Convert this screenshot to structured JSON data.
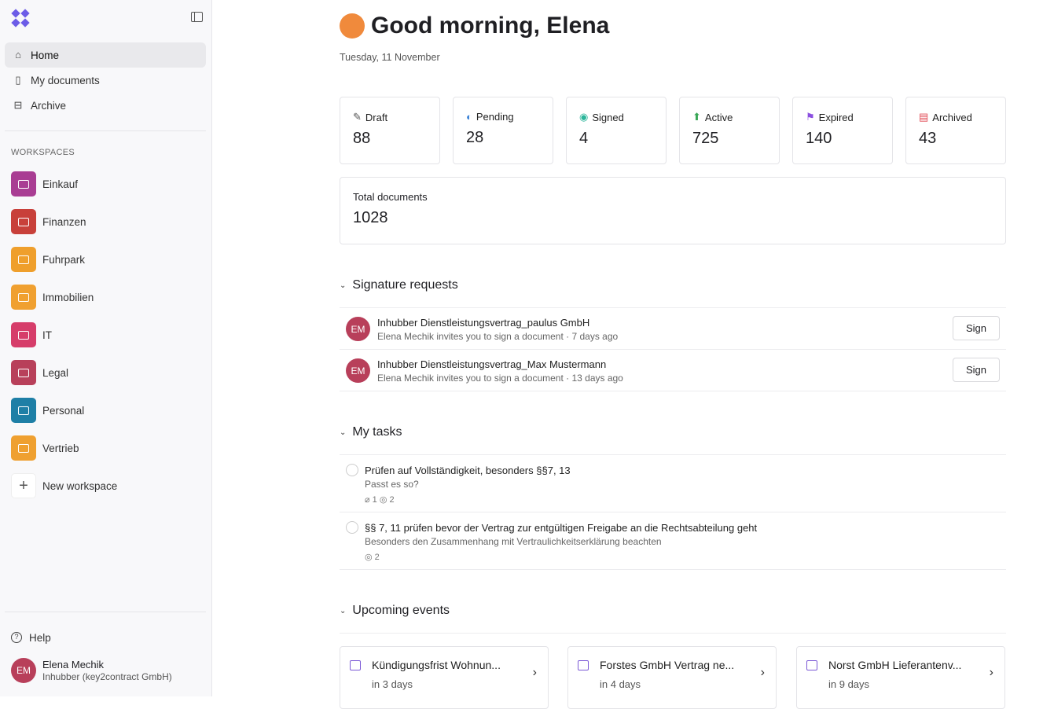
{
  "sidebar": {
    "nav": [
      {
        "label": "Home",
        "icon": "home-icon"
      },
      {
        "label": "My documents",
        "icon": "document-icon"
      },
      {
        "label": "Archive",
        "icon": "archive-icon"
      }
    ],
    "workspaces_heading": "WORKSPACES",
    "workspaces": [
      {
        "label": "Einkauf",
        "color": "#a93d93"
      },
      {
        "label": "Finanzen",
        "color": "#c8403a"
      },
      {
        "label": "Fuhrpark",
        "color": "#ef9f2c"
      },
      {
        "label": "Immobilien",
        "color": "#f0a030"
      },
      {
        "label": "IT",
        "color": "#d63d6a"
      },
      {
        "label": "Legal",
        "color": "#b8405a"
      },
      {
        "label": "Personal",
        "color": "#1e7fa6"
      },
      {
        "label": "Vertrieb",
        "color": "#efa030"
      }
    ],
    "new_workspace": "New workspace",
    "help": "Help",
    "user": {
      "initials": "EM",
      "name": "Elena Mechik",
      "org": "Inhubber (key2contract GmbH)"
    }
  },
  "header": {
    "greeting": "Good morning, Elena",
    "date": "Tuesday, 11 November"
  },
  "stats": [
    {
      "label": "Draft",
      "value": "88",
      "icon": "pencil-icon",
      "color": "#555"
    },
    {
      "label": "Pending",
      "value": "28",
      "icon": "half-circle-icon",
      "color": "#3b82d6"
    },
    {
      "label": "Signed",
      "value": "4",
      "icon": "check-circle-icon",
      "color": "#2bb59a"
    },
    {
      "label": "Active",
      "value": "725",
      "icon": "arrow-up-circle-icon",
      "color": "#3aa757"
    },
    {
      "label": "Expired",
      "value": "140",
      "icon": "flag-icon",
      "color": "#8b4fe0"
    },
    {
      "label": "Archived",
      "value": "43",
      "icon": "archive-icon",
      "color": "#e0454f"
    }
  ],
  "total": {
    "label": "Total documents",
    "value": "1028"
  },
  "signature_requests": {
    "title": "Signature requests",
    "items": [
      {
        "initials": "EM",
        "title": "Inhubber Dienstleistungsvertrag_paulus GmbH",
        "subtitle": "Elena Mechik invites you to sign a document · 7 days ago",
        "button": "Sign"
      },
      {
        "initials": "EM",
        "title": "Inhubber Dienstleistungsvertrag_Max Mustermann",
        "subtitle": "Elena Mechik invites you to sign a document · 13 days ago",
        "button": "Sign"
      }
    ]
  },
  "tasks": {
    "title": "My tasks",
    "items": [
      {
        "title": "Prüfen auf Vollständigkeit, besonders §§7, 13",
        "subtitle": "Passt es so?",
        "meta": "⌀ 1 ◎ 2"
      },
      {
        "title": "§§ 7, 11 prüfen bevor der Vertrag zur entgültigen Freigabe an die Rechtsabteilung geht",
        "subtitle": "Besonders den Zusammenhang mit Vertraulichkeitserklärung beachten",
        "meta": "◎ 2"
      }
    ]
  },
  "events": {
    "title": "Upcoming events",
    "items": [
      {
        "title": "Kündigungsfrist Wohnun...",
        "when": "in 3 days"
      },
      {
        "title": "Forstes GmbH Vertrag ne...",
        "when": "in 4 days"
      },
      {
        "title": "Norst GmbH Lieferantenv...",
        "when": "in 9 days"
      }
    ]
  }
}
